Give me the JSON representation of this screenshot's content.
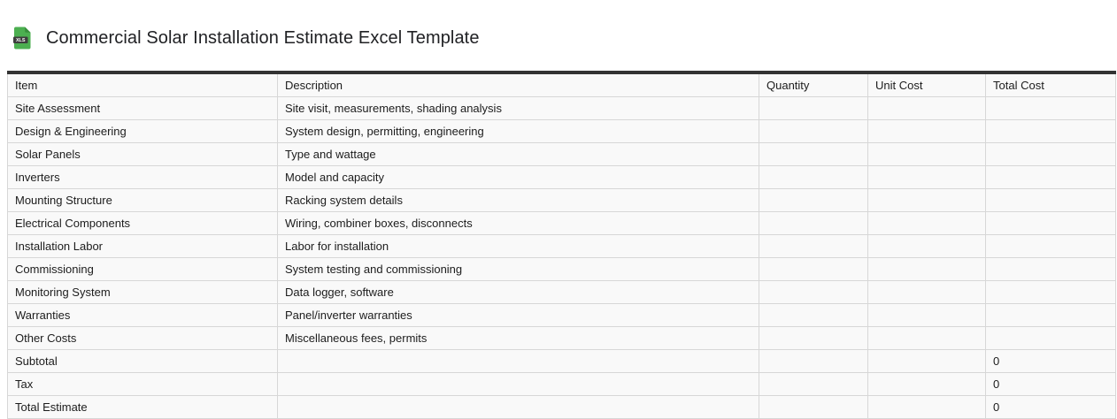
{
  "page": {
    "title": "Commercial Solar Installation Estimate Excel Template",
    "file_icon_label": "XLS"
  },
  "colors": {
    "icon_green": "#4caf50",
    "icon_green_dark": "#388e3c",
    "icon_label_band": "#3d3d3d",
    "table_top_border": "#333333",
    "cell_border": "#d7d7d7",
    "cell_background": "#f9f9f9",
    "text": "#1c1c1c"
  },
  "table": {
    "columns": [
      "Item",
      "Description",
      "Quantity",
      "Unit Cost",
      "Total Cost"
    ],
    "rows": [
      {
        "item": "Site Assessment",
        "description": "Site visit, measurements, shading analysis",
        "quantity": "",
        "unit_cost": "",
        "total_cost": ""
      },
      {
        "item": "Design & Engineering",
        "description": "System design, permitting, engineering",
        "quantity": "",
        "unit_cost": "",
        "total_cost": ""
      },
      {
        "item": "Solar Panels",
        "description": "Type and wattage",
        "quantity": "",
        "unit_cost": "",
        "total_cost": ""
      },
      {
        "item": "Inverters",
        "description": "Model and capacity",
        "quantity": "",
        "unit_cost": "",
        "total_cost": ""
      },
      {
        "item": "Mounting Structure",
        "description": "Racking system details",
        "quantity": "",
        "unit_cost": "",
        "total_cost": ""
      },
      {
        "item": "Electrical Components",
        "description": "Wiring, combiner boxes, disconnects",
        "quantity": "",
        "unit_cost": "",
        "total_cost": ""
      },
      {
        "item": "Installation Labor",
        "description": "Labor for installation",
        "quantity": "",
        "unit_cost": "",
        "total_cost": ""
      },
      {
        "item": "Commissioning",
        "description": "System testing and commissioning",
        "quantity": "",
        "unit_cost": "",
        "total_cost": ""
      },
      {
        "item": "Monitoring System",
        "description": "Data logger, software",
        "quantity": "",
        "unit_cost": "",
        "total_cost": ""
      },
      {
        "item": "Warranties",
        "description": "Panel/inverter warranties",
        "quantity": "",
        "unit_cost": "",
        "total_cost": ""
      },
      {
        "item": "Other Costs",
        "description": "Miscellaneous fees, permits",
        "quantity": "",
        "unit_cost": "",
        "total_cost": ""
      },
      {
        "item": "Subtotal",
        "description": "",
        "quantity": "",
        "unit_cost": "",
        "total_cost": "0"
      },
      {
        "item": "Tax",
        "description": "",
        "quantity": "",
        "unit_cost": "",
        "total_cost": "0"
      },
      {
        "item": "Total Estimate",
        "description": "",
        "quantity": "",
        "unit_cost": "",
        "total_cost": "0"
      }
    ]
  }
}
